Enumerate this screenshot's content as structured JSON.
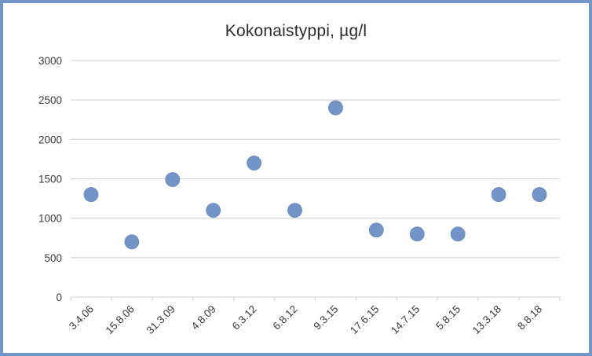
{
  "chart": {
    "title": "Kokonaistyppi, µg/l",
    "colors": {
      "marker_fill": "#7394C6",
      "marker_edge": "#6588BB",
      "gridline": "#D9D9D9",
      "axis_line": "#D9D9D9",
      "tick_label": "#3B3B3B",
      "title_text": "#2B2B2B",
      "frame_border": "#7296C6",
      "background": "#FFFFFF"
    }
  },
  "chart_data": {
    "type": "scatter",
    "title": "Kokonaistyppi, µg/l",
    "categories": [
      "3.4.06",
      "15.8.06",
      "31.3.09",
      "4.8.09",
      "6.3.12",
      "6.8.12",
      "9.3.15",
      "17.6.15",
      "14.7.15",
      "5.8.15",
      "13.3.18",
      "8.8.18"
    ],
    "values": [
      1300,
      700,
      1490,
      1100,
      1700,
      1100,
      2400,
      850,
      800,
      800,
      1300,
      1300
    ],
    "xlabel": "",
    "ylabel": "",
    "ylim": [
      0,
      3000
    ],
    "y_ticks": [
      0,
      500,
      1000,
      1500,
      2000,
      2500,
      3000
    ],
    "grid": true,
    "legend": false,
    "x_label_rotation_deg": -45
  }
}
